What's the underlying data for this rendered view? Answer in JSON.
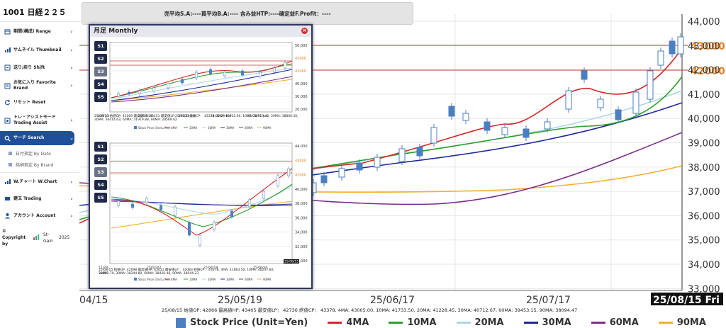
{
  "header": {
    "code": "1001 日経２２５"
  },
  "sidebar": {
    "items": [
      {
        "label": "期間(構成) Range",
        "icon": "calendar-icon"
      },
      {
        "label": "サムネイル Thumbnail",
        "icon": "thumbnail-icon"
      },
      {
        "label": "送り/戻り Shift",
        "icon": "shift-icon"
      },
      {
        "label": "お気に入り Favorite　Brand",
        "icon": "favorite-icon"
      },
      {
        "label": "リセット Reset",
        "icon": "reset-icon"
      },
      {
        "label": "トレ・アシストモード Trading Assist",
        "icon": "assist-icon"
      },
      {
        "label": "サーチ Search",
        "icon": "search-icon"
      },
      {
        "label": "W.チャート W.Chart",
        "icon": "chart-icon"
      },
      {
        "label": "建玉 Trading",
        "icon": "trading-icon"
      },
      {
        "label": "アカウント Account",
        "icon": "account-icon"
      }
    ],
    "search_sub": [
      "日付指定 By Date",
      "銘柄指定 By Brand"
    ],
    "copyright": "© Copyright by",
    "copyright_brand": "St-Gain",
    "copyright_year": "2025"
  },
  "summary": {
    "text": "売平均S.A:----買平均B.A:---- 含み益HTP:----確定益F.Profit：----"
  },
  "main_chart": {
    "price_labels": [
      "44,000",
      "43,000",
      "42,000",
      "41,000",
      "40,000",
      "39,000",
      "38,000",
      "37,000",
      "36,000",
      "35,000",
      "34,000",
      "33,000"
    ],
    "highlight_levels": [
      "43000",
      "42000"
    ],
    "date_labels": [
      "04/15",
      "25/05/19",
      "25/06/17",
      "25/07/17"
    ],
    "date_current": "25/08/15 Fri",
    "info_line": "25/08/15 始値OP: 42866  最高値HP: 43405 最安値LP： 42736  終値CP： 43378, 4MA: 43005.00, 10MA: 41733.50, 20MA: 41228.45, 30MA: 40712.67, 60MA: 39453.15, 90MA: 38094.47"
  },
  "legend": [
    {
      "label": "Stock Price (Unit=Yen)",
      "color": "#4a7fc1",
      "kind": "box"
    },
    {
      "label": "4MA",
      "color": "#d62728",
      "kind": "line"
    },
    {
      "label": "10MA",
      "color": "#2ca02c",
      "kind": "line"
    },
    {
      "label": "20MA",
      "color": "#aed6e8",
      "kind": "line"
    },
    {
      "label": "30MA",
      "color": "#1f2a9a",
      "kind": "line"
    },
    {
      "label": "60MA",
      "color": "#7b2d8e",
      "kind": "line"
    },
    {
      "label": "90MA",
      "color": "#f0b030",
      "kind": "line"
    }
  ],
  "popup": {
    "title": "月足 Monthly",
    "sbuttons": [
      "S1",
      "S2",
      "S3",
      "S4",
      "S5"
    ],
    "monthly": {
      "price_labels": [
        "50,000",
        "43000",
        "42000",
        "40,000",
        "30,000",
        "20,000"
      ],
      "date_labels": [
        "1/29 Jul",
        "20/05/29",
        "25/05/31 Jan",
        "24/02/29 Mar",
        "25/01/31 Jan"
      ],
      "info1": "25/08/15 始値OP: 41069  最高値HP: 43451 最安値LP： 39850  終値CP： 43378, 4MA: 40725.00, 10MA: 38919.40, 20MA: 38800.50,",
      "info2": "30MA: 36414.63, 60MA: 31919.88, 90MA: 28569.62"
    },
    "weekly": {
      "price_labels": [
        "44,000",
        "43000",
        "42000",
        "40,000",
        "38,000",
        "36,000",
        "34,000",
        "32,000",
        "30,000"
      ],
      "date_labels": [
        "11/29",
        "25/02/07",
        "25/04/18",
        "25/06/26"
      ],
      "date_current": "25/08/15",
      "info1": "25/08/15 始値OP: 42098  最高値HP: 43451 最安値LP： 42083  終値CP： 43378, 4MA: 41863.50, 10MA: 40247.60, 20MA:",
      "info2": "38261.70, 30MA: 38244.80, 60MA: 38426.48, 90MA: 38044.23"
    },
    "mini_legend": [
      "Stock Price (Unit=Yen)",
      "4MA",
      "10MA",
      "20MA",
      "30MA",
      "60MA",
      "90MA"
    ]
  },
  "colors": {
    "accent": "#1f4f9a",
    "up": "#ffffff",
    "down": "#4a7fc1",
    "ma4": "#d62728",
    "ma10": "#2ca02c",
    "ma20": "#aed6e8",
    "ma30": "#1f2a9a",
    "ma60": "#7b2d8e",
    "ma90": "#f0b030",
    "level": "#c0392b",
    "level_text": "#e67e22"
  }
}
